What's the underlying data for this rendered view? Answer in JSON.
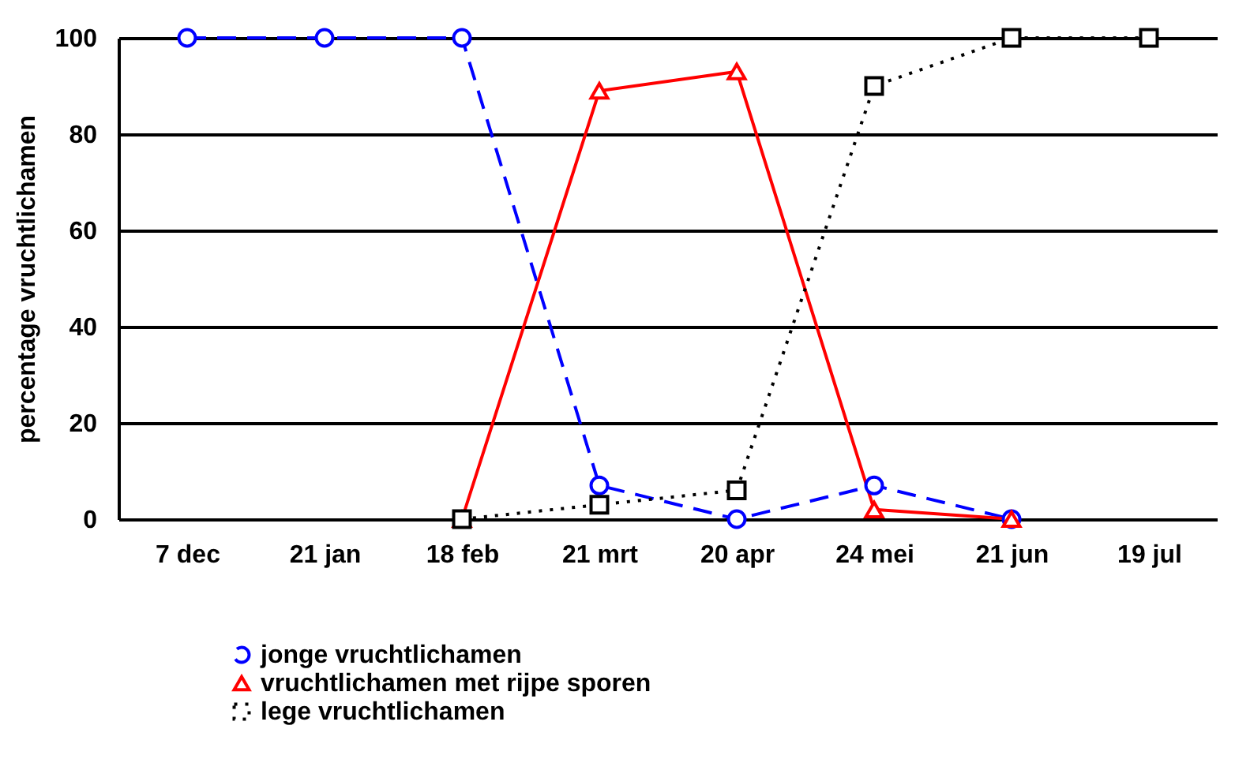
{
  "chart_data": {
    "type": "line",
    "ylabel": "percentage vruchtlichamen",
    "categories": [
      "7 dec",
      "21 jan",
      "18 feb",
      "21 mrt",
      "20 apr",
      "24 mei",
      "21 jun",
      "19 jul"
    ],
    "series": [
      {
        "name": "jonge vruchtlichamen",
        "color": "#0000ff",
        "marker": "circle",
        "line_style": "dashed",
        "values": [
          100,
          100,
          100,
          7,
          0,
          7,
          0,
          null
        ]
      },
      {
        "name": "vruchtlichamen met rijpe sporen",
        "color": "#ff0000",
        "marker": "triangle",
        "line_style": "solid",
        "values": [
          null,
          null,
          0,
          89,
          93,
          2,
          0,
          null
        ]
      },
      {
        "name": "lege vruchtlichamen",
        "color": "#000000",
        "marker": "square",
        "line_style": "dotted",
        "values": [
          null,
          null,
          0,
          3,
          6,
          90,
          100,
          100
        ]
      }
    ],
    "ylim": [
      0,
      100
    ],
    "yticks": [
      0,
      20,
      40,
      60,
      80,
      100
    ],
    "grid": "y",
    "legend": "bottom"
  }
}
